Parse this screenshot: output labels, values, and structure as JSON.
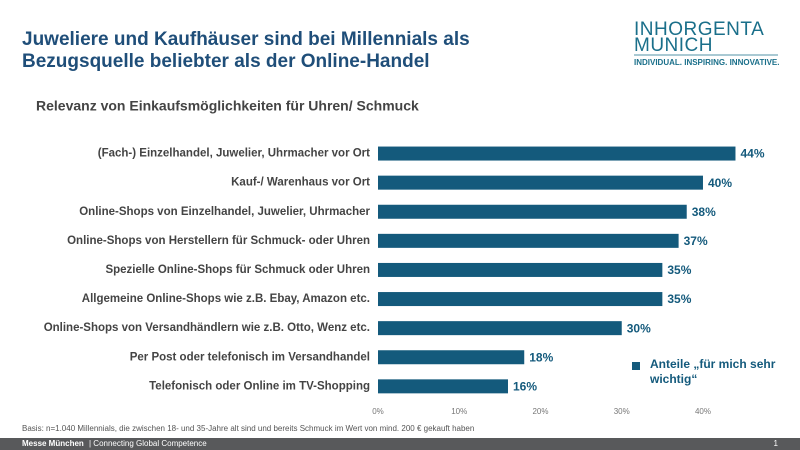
{
  "chart_data": {
    "type": "bar",
    "orientation": "horizontal",
    "title": [
      "Juweliere und Kaufhäuser sind bei Millennials als",
      "Bezugsquelle beliebter als der Online-Handel"
    ],
    "subtitle": "Relevanz von Einkaufsmöglichkeiten für Uhren/ Schmuck",
    "categories": [
      "(Fach-) Einzelhandel, Juwelier, Uhrmacher vor Ort",
      "Kauf-/ Warenhaus vor Ort",
      "Online-Shops von Einzelhandel, Juwelier, Uhrmacher",
      "Online-Shops von Herstellern für Schmuck- oder Uhren",
      "Spezielle Online-Shops für Schmuck oder Uhren",
      "Allgemeine Online-Shops wie z.B. Ebay, Amazon etc.",
      "Online-Shops von Versandhändlern wie z.B. Otto, Wenz etc.",
      "Per Post oder telefonisch im Versandhandel",
      "Telefonisch oder Online im TV-Shopping"
    ],
    "series": [
      {
        "name": "Anteile „für mich sehr wichtig“",
        "color": "#145a7c",
        "values": [
          44,
          40,
          38,
          37,
          35,
          35,
          30,
          18,
          16
        ],
        "value_labels": [
          "44%",
          "40%",
          "38%",
          "37%",
          "35%",
          "35%",
          "30%",
          "18%",
          "16%"
        ]
      }
    ],
    "xlim": [
      0,
      45
    ],
    "xticks": [
      {
        "value": 0,
        "label": "0%"
      },
      {
        "value": 10,
        "label": "10%"
      },
      {
        "value": 20,
        "label": "20%"
      },
      {
        "value": 30,
        "label": "30%"
      },
      {
        "value": 40,
        "label": "40%"
      }
    ],
    "grid": false,
    "legend": "lower right",
    "footnote": "Basis: n=1.040 Millennials, die zwischen 18- und 35-Jahre  alt sind und bereits Schmuck im Wert von mind. 200 € gekauft haben"
  },
  "logo": {
    "name": "INHORGENTA",
    "city": "MUNICH",
    "slogan": "INDIVIDUAL. INSPIRING. INNOVATIVE."
  },
  "footer": {
    "brand": "Messe München",
    "tagline": "| Connecting Global Competence",
    "page": "1"
  }
}
